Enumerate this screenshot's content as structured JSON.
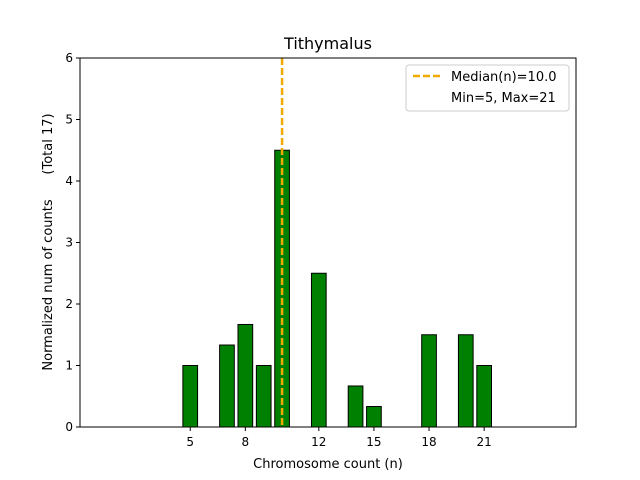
{
  "chart_data": {
    "type": "bar",
    "title": "Tithymalus",
    "xlabel": "Chromosome count (n)",
    "ylabel": "Normalized num of counts      (Total 17)",
    "xlim": [
      -1,
      26
    ],
    "ylim": [
      0,
      6
    ],
    "xticks": [
      5,
      8,
      12,
      15,
      18,
      21
    ],
    "yticks": [
      0,
      1,
      2,
      3,
      4,
      5,
      6
    ],
    "bar_color": "#008000",
    "bar_edge_color": "#000000",
    "bars": [
      {
        "x": 5,
        "value": 1.0
      },
      {
        "x": 7,
        "value": 1.333
      },
      {
        "x": 8,
        "value": 1.667
      },
      {
        "x": 9,
        "value": 1.0
      },
      {
        "x": 10,
        "value": 4.5
      },
      {
        "x": 12,
        "value": 2.5
      },
      {
        "x": 14,
        "value": 0.667
      },
      {
        "x": 15,
        "value": 0.333
      },
      {
        "x": 18,
        "value": 1.5
      },
      {
        "x": 20,
        "value": 1.5
      },
      {
        "x": 21,
        "value": 1.0
      }
    ],
    "median_line": {
      "x": 10.0,
      "color": "#f2a900",
      "label": "Median(n)=10.0"
    },
    "legend": {
      "position": "top-right",
      "entries": [
        "Median(n)=10.0",
        "Min=5, Max=21"
      ]
    }
  }
}
